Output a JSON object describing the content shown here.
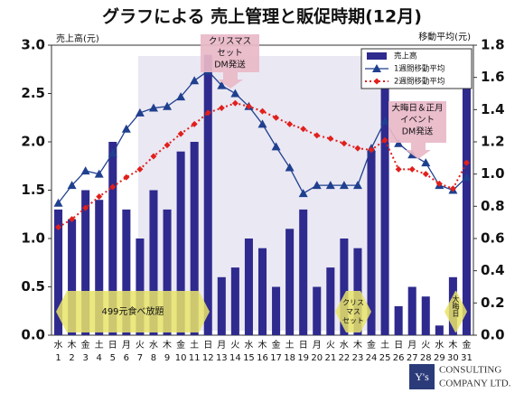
{
  "chart_data": {
    "type": "bar",
    "title": "グラフによる 売上管理と販促時期(12月)",
    "y_label": "売上高(元)",
    "y2_label": "移動平均(元)",
    "categories": [
      "1",
      "2",
      "3",
      "4",
      "5",
      "6",
      "7",
      "8",
      "9",
      "10",
      "11",
      "12",
      "13",
      "14",
      "15",
      "16",
      "17",
      "18",
      "19",
      "20",
      "21",
      "22",
      "23",
      "24",
      "25",
      "26",
      "27",
      "28",
      "29",
      "30",
      "31"
    ],
    "weekdays": [
      "水",
      "木",
      "金",
      "土",
      "日",
      "月",
      "火",
      "水",
      "木",
      "金",
      "土",
      "日",
      "月",
      "火",
      "水",
      "木",
      "金",
      "土",
      "日",
      "月",
      "火",
      "水",
      "木",
      "金",
      "土",
      "日",
      "月",
      "火",
      "水",
      "木",
      "金"
    ],
    "series": [
      {
        "name": "売上高",
        "type": "bar",
        "color": "#2f2a8e",
        "values": [
          1.3,
          1.2,
          1.5,
          1.4,
          2.0,
          1.3,
          1.0,
          1.5,
          1.3,
          1.9,
          2.0,
          2.9,
          0.6,
          0.7,
          1.0,
          0.9,
          0.5,
          1.1,
          1.3,
          0.5,
          0.7,
          1.0,
          0.9,
          1.9,
          2.6,
          0.3,
          0.5,
          0.4,
          0.1,
          0.6,
          2.6
        ]
      },
      {
        "name": "1週間移動平均",
        "type": "line",
        "axis": "y2",
        "color": "#1f3f8f",
        "marker": "triangle",
        "values": [
          0.82,
          0.93,
          1.02,
          1.0,
          1.13,
          1.28,
          1.38,
          1.41,
          1.42,
          1.48,
          1.58,
          1.64,
          1.55,
          1.5,
          1.42,
          1.31,
          1.17,
          1.04,
          0.88,
          0.93,
          0.93,
          0.93,
          0.93,
          1.16,
          1.33,
          1.19,
          1.12,
          1.07,
          0.93,
          0.9,
          0.98
        ]
      },
      {
        "name": "2週間移動平均",
        "type": "line",
        "axis": "y2",
        "color": "#e0201c",
        "marker": "diamond",
        "dashed": true,
        "values": [
          0.67,
          0.72,
          0.79,
          0.86,
          0.92,
          0.98,
          1.03,
          1.11,
          1.18,
          1.25,
          1.31,
          1.38,
          1.41,
          1.44,
          1.42,
          1.39,
          1.35,
          1.31,
          1.28,
          1.24,
          1.22,
          1.19,
          1.16,
          1.15,
          1.21,
          1.03,
          1.03,
          1.0,
          0.94,
          0.91,
          1.07
        ]
      }
    ],
    "ylim": [
      0,
      3
    ],
    "yticks": [
      {
        "value": 0,
        "label": "0.0"
      },
      0.5,
      {
        "value": 1,
        "label": "1.0"
      },
      1.5,
      {
        "value": 2,
        "label": "2.0"
      },
      2.5,
      {
        "value": 3,
        "label": "3.0"
      }
    ],
    "y2lim": [
      0,
      1.8
    ],
    "y2ticks": [
      {
        "value": 0,
        "label": "0.0"
      },
      0.2,
      0.4,
      0.6,
      0.8,
      {
        "value": 1,
        "label": "1.0"
      },
      1.2,
      1.4,
      1.6,
      1.8
    ],
    "legend": "upper right",
    "callouts": [
      {
        "lines": [
          "クリスマス",
          "セット",
          "DM発送"
        ]
      },
      {
        "lines": [
          "大晦日＆正月",
          "イベント",
          "DM発送"
        ]
      }
    ],
    "promotions": [
      {
        "lines": [
          "499元食べ放題"
        ]
      },
      {
        "lines": [
          "クリス",
          "マス",
          "セット"
        ]
      },
      {
        "lines": [
          "大晦日"
        ],
        "vertical": true
      }
    ],
    "logo": {
      "mark": "Y's",
      "lines": [
        "CONSULTING",
        "COMPANY LTD."
      ]
    }
  }
}
